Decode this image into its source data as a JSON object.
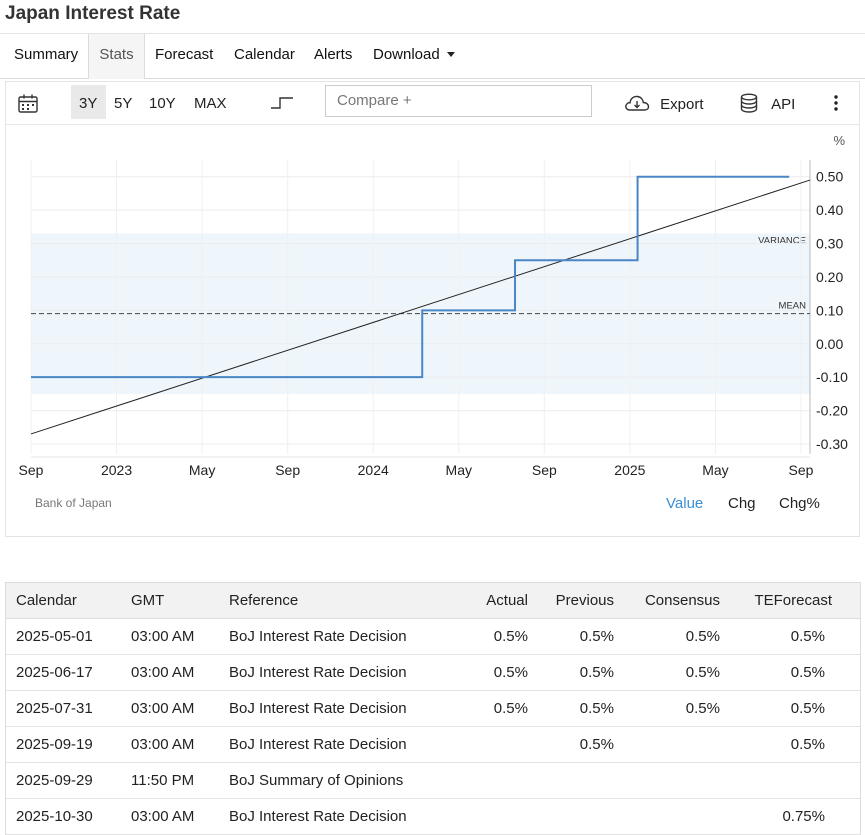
{
  "page": {
    "title": "Japan Interest Rate"
  },
  "tabs": [
    {
      "label": "Summary"
    },
    {
      "label": "Stats"
    },
    {
      "label": "Forecast"
    },
    {
      "label": "Calendar"
    },
    {
      "label": "Alerts"
    },
    {
      "label": "Download"
    }
  ],
  "toolbar": {
    "ranges": [
      "3Y",
      "5Y",
      "10Y",
      "MAX"
    ],
    "active_range": "3Y",
    "compare_placeholder": "Compare +",
    "export_label": "Export",
    "api_label": "API"
  },
  "chart_data": {
    "type": "line",
    "unit_label": "%",
    "x_tick_labels": [
      "Sep",
      "2023",
      "May",
      "Sep",
      "2024",
      "May",
      "Sep",
      "2025",
      "May",
      "Sep"
    ],
    "y_ticks": [
      0.5,
      0.4,
      0.3,
      0.2,
      0.1,
      0.0,
      -0.1,
      -0.2,
      -0.3
    ],
    "y_tick_labels": [
      "0.50",
      "0.40",
      "0.30",
      "0.20",
      "0.10",
      "0.00",
      "-0.10",
      "-0.20",
      "-0.30"
    ],
    "ylim": [
      -0.33,
      0.55
    ],
    "xlim": [
      "2022-09-01",
      "2025-09-30"
    ],
    "series": [
      {
        "type": "step",
        "color": "#4a86c5",
        "points": [
          {
            "x": "2022-09-01",
            "y": -0.1
          },
          {
            "x": "2024-03-19",
            "y": 0.1
          },
          {
            "x": "2024-07-31",
            "y": 0.25
          },
          {
            "x": "2025-01-24",
            "y": 0.5
          },
          {
            "x": "2025-08-31",
            "y": 0.5
          }
        ]
      }
    ],
    "trendline": {
      "color": "#222222",
      "start": {
        "x": "2022-09-01",
        "y": -0.27
      },
      "end": {
        "x": "2025-09-30",
        "y": 0.49
      }
    },
    "mean": {
      "label": "MEAN",
      "value": 0.09
    },
    "variance": {
      "label": "VARIANCE",
      "range": [
        -0.15,
        0.33
      ]
    },
    "source": "Bank of Japan",
    "value_toggles": [
      "Value",
      "Chg",
      "Chg%"
    ],
    "active_toggle": "Value",
    "grid": true
  },
  "calendar": {
    "headers": [
      "Calendar",
      "GMT",
      "Reference",
      "Actual",
      "Previous",
      "Consensus",
      "TEForecast"
    ],
    "rows": [
      [
        "2025-05-01",
        "03:00 AM",
        "BoJ Interest Rate Decision",
        "0.5%",
        "0.5%",
        "0.5%",
        "0.5%"
      ],
      [
        "2025-06-17",
        "03:00 AM",
        "BoJ Interest Rate Decision",
        "0.5%",
        "0.5%",
        "0.5%",
        "0.5%"
      ],
      [
        "2025-07-31",
        "03:00 AM",
        "BoJ Interest Rate Decision",
        "0.5%",
        "0.5%",
        "0.5%",
        "0.5%"
      ],
      [
        "2025-09-19",
        "03:00 AM",
        "BoJ Interest Rate Decision",
        "",
        "0.5%",
        "",
        "0.5%"
      ],
      [
        "2025-09-29",
        "11:50 PM",
        "BoJ Summary of Opinions",
        "",
        "",
        "",
        ""
      ],
      [
        "2025-10-30",
        "03:00 AM",
        "BoJ Interest Rate Decision",
        "",
        "",
        "",
        "0.75%"
      ]
    ]
  }
}
